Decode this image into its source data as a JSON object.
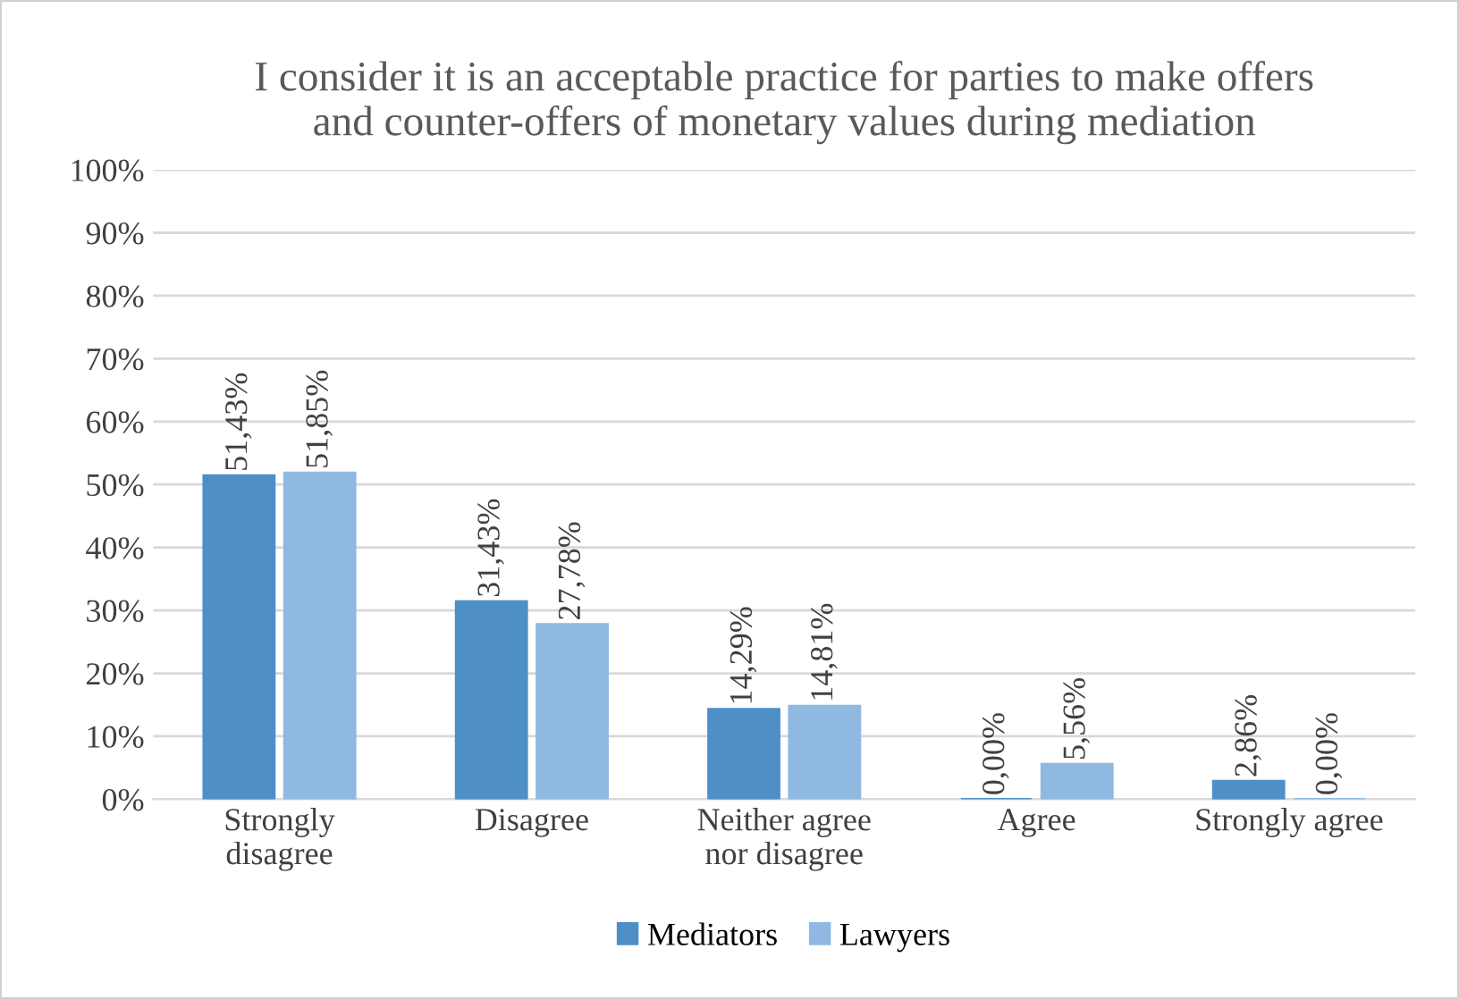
{
  "chart_data": {
    "type": "bar",
    "title": "I consider it is an acceptable practice for parties to make offers\nand counter-offers of monetary values during mediation",
    "categories": [
      "Strongly\ndisagree",
      "Disagree",
      "Neither agree\nnor disagree",
      "Agree",
      "Strongly agree"
    ],
    "series": [
      {
        "name": "Mediators",
        "color": "#4f8fc8",
        "values": [
          51.43,
          31.43,
          14.29,
          0.0,
          2.86
        ],
        "value_labels": [
          "51,43%",
          "31,43%",
          "14,29%",
          "0,00%",
          "2,86%"
        ]
      },
      {
        "name": "Lawyers",
        "color": "#8fb9e1",
        "values": [
          51.85,
          27.78,
          14.81,
          5.56,
          0.0
        ],
        "value_labels": [
          "51,85%",
          "27,78%",
          "14,81%",
          "5,56%",
          "0,00%"
        ]
      }
    ],
    "ylim": [
      0,
      100
    ],
    "yticks": [
      {
        "value": 0,
        "label": "0%"
      },
      {
        "value": 10,
        "label": "10%"
      },
      {
        "value": 20,
        "label": "20%"
      },
      {
        "value": 30,
        "label": "30%"
      },
      {
        "value": 40,
        "label": "40%"
      },
      {
        "value": 50,
        "label": "50%"
      },
      {
        "value": 60,
        "label": "60%"
      },
      {
        "value": 70,
        "label": "70%"
      },
      {
        "value": 80,
        "label": "80%"
      },
      {
        "value": 90,
        "label": "90%"
      },
      {
        "value": 100,
        "label": "100%"
      }
    ],
    "grid": "y",
    "legend": "bottom"
  }
}
